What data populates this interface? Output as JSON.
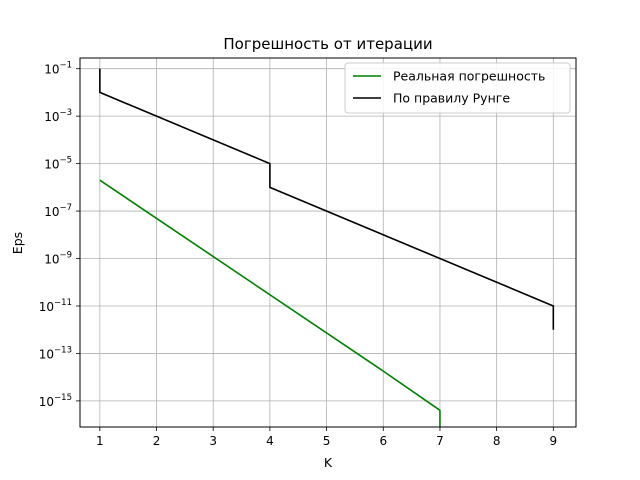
{
  "chart_data": {
    "type": "line",
    "title": "Погрешность от итерации",
    "xlabel": "K",
    "ylabel": "Eps",
    "xlim": [
      0.65,
      9.4
    ],
    "ylim_log10": [
      -16.1,
      -0.55
    ],
    "yscale": "log",
    "grid": true,
    "legend_position": "top-right",
    "x_ticks": [
      1,
      2,
      3,
      4,
      5,
      6,
      7,
      8,
      9
    ],
    "y_ticks": [
      {
        "base": "10",
        "exp": "−1",
        "log10": -1
      },
      {
        "base": "10",
        "exp": "−3",
        "log10": -3
      },
      {
        "base": "10",
        "exp": "−5",
        "log10": -5
      },
      {
        "base": "10",
        "exp": "−7",
        "log10": -7
      },
      {
        "base": "10",
        "exp": "−9",
        "log10": -9
      },
      {
        "base": "10",
        "exp": "−11",
        "log10": -11
      },
      {
        "base": "10",
        "exp": "−13",
        "log10": -13
      },
      {
        "base": "10",
        "exp": "−15",
        "log10": -15
      }
    ],
    "series": [
      {
        "name": "Реальная погрешность",
        "color": "#008000",
        "points": [
          {
            "x": 1,
            "y": 2e-06
          },
          {
            "x": 6,
            "y": 1.8e-14
          },
          {
            "x": 7,
            "y": 4e-16
          },
          {
            "x": 7,
            "y": 8e-17
          }
        ]
      },
      {
        "name": "По правилу Рунге",
        "color": "#000000",
        "points": [
          {
            "x": 1,
            "y": 0.1
          },
          {
            "x": 1,
            "y": 0.01
          },
          {
            "x": 4,
            "y": 1e-05
          },
          {
            "x": 4,
            "y": 1e-06
          },
          {
            "x": 9,
            "y": 1e-11
          },
          {
            "x": 9,
            "y": 1e-12
          }
        ]
      }
    ]
  }
}
